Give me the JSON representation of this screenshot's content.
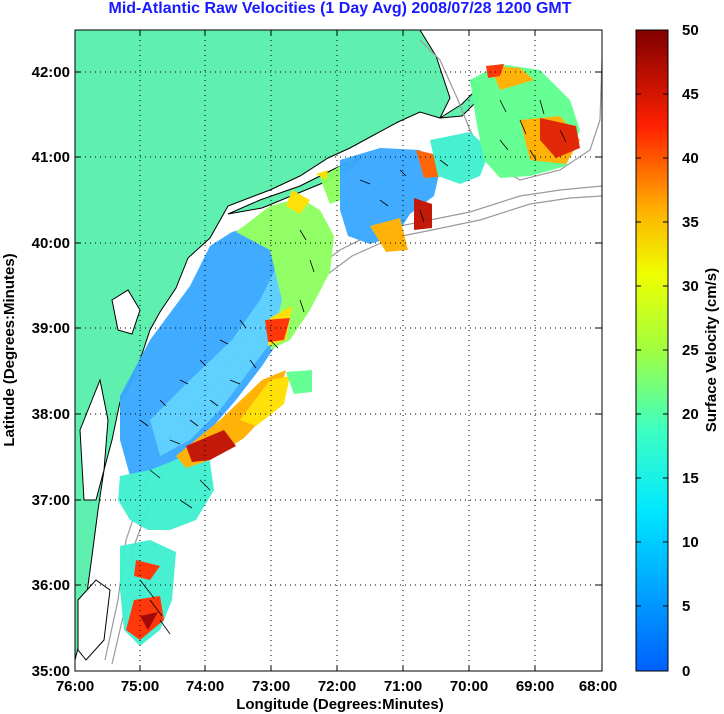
{
  "title": "Mid-Atlantic Raw Velocities (1 Day Avg) 2008/07/28 1200 GMT",
  "map": {
    "xlabel": "Longitude (Degrees:Minutes)",
    "ylabel": "Latitude (Degrees:Minutes)",
    "x_ticks": [
      "76:00",
      "75:00",
      "74:00",
      "73:00",
      "72:00",
      "71:00",
      "70:00",
      "69:00",
      "68:00"
    ],
    "y_ticks": [
      "42:00",
      "41:00",
      "40:00",
      "39:00",
      "38:00",
      "37:00",
      "36:00",
      "35:00"
    ],
    "lon_range": [
      -76,
      -68
    ],
    "lat_range": [
      35,
      42.5
    ],
    "grid": "dotted",
    "land_color": "#5ff0b0",
    "coast_color": "#000000",
    "bathymetry_color": "#999999"
  },
  "colorbar": {
    "label": "Surface Velocity (cm/s)",
    "ticks": [
      "50",
      "45",
      "40",
      "35",
      "30",
      "25",
      "20",
      "15",
      "10",
      "5",
      "0"
    ],
    "range": [
      0,
      50
    ],
    "colormap": "jet"
  }
}
